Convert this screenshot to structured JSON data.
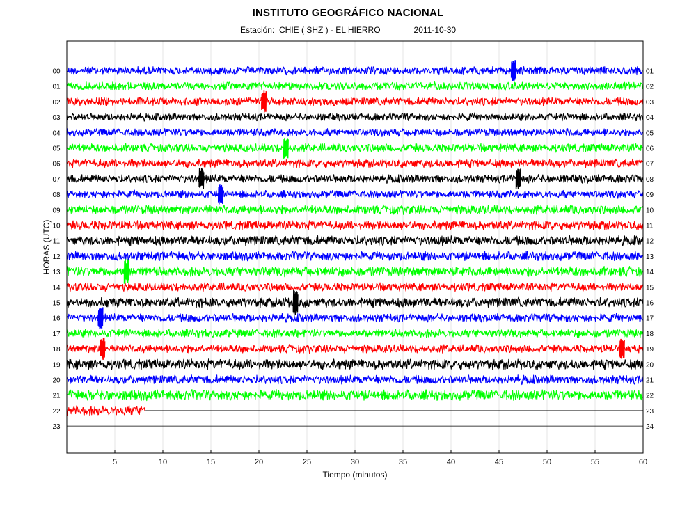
{
  "header": {
    "title": "INSTITUTO GEOGRÁFICO NACIONAL",
    "station_text": "Estación:  CHIE ( SHZ ) - EL HIERRO",
    "date": "2011-10-30"
  },
  "chart_data": {
    "type": "line",
    "title": "INSTITUTO GEOGRÁFICO NACIONAL",
    "subtitle": "Estación:  CHIE ( SHZ ) - EL HIERRO          2011-10-30",
    "xlabel": "Tiempo (minutos)",
    "ylabel": "HORAS (UTC)",
    "xlim": [
      0,
      60
    ],
    "x_ticks": [
      5,
      10,
      15,
      20,
      25,
      30,
      35,
      40,
      45,
      50,
      55,
      60
    ],
    "left_hour_labels": [
      "00",
      "01",
      "02",
      "03",
      "04",
      "05",
      "06",
      "07",
      "08",
      "09",
      "10",
      "11",
      "12",
      "13",
      "14",
      "15",
      "16",
      "17",
      "18",
      "19",
      "20",
      "21",
      "22",
      "23"
    ],
    "right_hour_labels": [
      "01",
      "02",
      "03",
      "04",
      "05",
      "06",
      "07",
      "08",
      "09",
      "10",
      "11",
      "12",
      "13",
      "14",
      "15",
      "16",
      "17",
      "18",
      "19",
      "20",
      "21",
      "22",
      "23",
      "24"
    ],
    "grid": "vertical",
    "trace_color_cycle": [
      "#0000ff",
      "#00ff00",
      "#ff0000",
      "#000000"
    ],
    "traces": [
      {
        "hour": "00",
        "color": "#0000ff",
        "amplitude": 0.6,
        "minutes_recorded": 60,
        "events_minute": [
          46.5
        ]
      },
      {
        "hour": "01",
        "color": "#00ff00",
        "amplitude": 0.6,
        "minutes_recorded": 60,
        "events_minute": []
      },
      {
        "hour": "02",
        "color": "#ff0000",
        "amplitude": 0.6,
        "minutes_recorded": 60,
        "events_minute": [
          20.5
        ]
      },
      {
        "hour": "03",
        "color": "#000000",
        "amplitude": 0.55,
        "minutes_recorded": 60,
        "events_minute": []
      },
      {
        "hour": "04",
        "color": "#0000ff",
        "amplitude": 0.55,
        "minutes_recorded": 60,
        "events_minute": []
      },
      {
        "hour": "05",
        "color": "#00ff00",
        "amplitude": 0.6,
        "minutes_recorded": 60,
        "events_minute": [
          22.8
        ]
      },
      {
        "hour": "06",
        "color": "#ff0000",
        "amplitude": 0.6,
        "minutes_recorded": 60,
        "events_minute": []
      },
      {
        "hour": "07",
        "color": "#000000",
        "amplitude": 0.6,
        "minutes_recorded": 60,
        "events_minute": [
          14.0,
          47.0
        ]
      },
      {
        "hour": "08",
        "color": "#0000ff",
        "amplitude": 0.55,
        "minutes_recorded": 60,
        "events_minute": [
          16.0
        ]
      },
      {
        "hour": "09",
        "color": "#00ff00",
        "amplitude": 0.65,
        "minutes_recorded": 60,
        "events_minute": []
      },
      {
        "hour": "10",
        "color": "#ff0000",
        "amplitude": 0.65,
        "minutes_recorded": 60,
        "events_minute": []
      },
      {
        "hour": "11",
        "color": "#000000",
        "amplitude": 0.7,
        "minutes_recorded": 60,
        "events_minute": []
      },
      {
        "hour": "12",
        "color": "#0000ff",
        "amplitude": 0.65,
        "minutes_recorded": 60,
        "events_minute": []
      },
      {
        "hour": "13",
        "color": "#00ff00",
        "amplitude": 0.7,
        "minutes_recorded": 60,
        "events_minute": [
          6.2
        ]
      },
      {
        "hour": "14",
        "color": "#ff0000",
        "amplitude": 0.6,
        "minutes_recorded": 60,
        "events_minute": []
      },
      {
        "hour": "15",
        "color": "#000000",
        "amplitude": 0.7,
        "minutes_recorded": 60,
        "events_minute": [
          23.8
        ]
      },
      {
        "hour": "16",
        "color": "#0000ff",
        "amplitude": 0.6,
        "minutes_recorded": 60,
        "events_minute": [
          3.5
        ]
      },
      {
        "hour": "17",
        "color": "#00ff00",
        "amplitude": 0.6,
        "minutes_recorded": 60,
        "events_minute": []
      },
      {
        "hour": "18",
        "color": "#ff0000",
        "amplitude": 0.6,
        "minutes_recorded": 60,
        "events_minute": [
          3.7,
          57.8
        ]
      },
      {
        "hour": "19",
        "color": "#000000",
        "amplitude": 0.75,
        "minutes_recorded": 60,
        "events_minute": []
      },
      {
        "hour": "20",
        "color": "#0000ff",
        "amplitude": 0.65,
        "minutes_recorded": 60,
        "events_minute": []
      },
      {
        "hour": "21",
        "color": "#00ff00",
        "amplitude": 0.75,
        "minutes_recorded": 60,
        "events_minute": []
      },
      {
        "hour": "22",
        "color": "#ff0000",
        "amplitude": 0.7,
        "minutes_recorded": 8.2,
        "events_minute": []
      },
      {
        "hour": "23",
        "color": "#000000",
        "amplitude": 0,
        "minutes_recorded": 0,
        "events_minute": []
      }
    ]
  }
}
